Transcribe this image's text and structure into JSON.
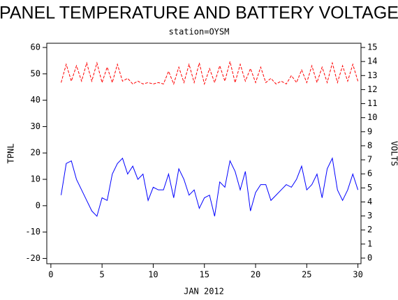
{
  "chart_data": {
    "type": "line",
    "title": "PANEL TEMPERATURE AND BATTERY VOLTAGE",
    "subtitle": "station=OYSM",
    "x_label": "JAN 2012",
    "y_label": "TPNL",
    "y2_label": "VOLTS",
    "x": [
      1,
      1.5,
      2,
      2.5,
      3,
      3.5,
      4,
      4.5,
      5,
      5.5,
      6,
      6.5,
      7,
      7.5,
      8,
      8.5,
      9,
      9.5,
      10,
      10.5,
      11,
      11.5,
      12,
      12.5,
      13,
      13.5,
      14,
      14.5,
      15,
      15.5,
      16,
      16.5,
      17,
      17.5,
      18,
      18.5,
      19,
      19.5,
      20,
      20.5,
      21,
      21.5,
      22,
      22.5,
      23,
      23.5,
      24,
      24.5,
      25,
      25.5,
      26,
      26.5,
      27,
      27.5,
      28,
      28.5,
      29,
      29.5,
      30
    ],
    "series": [
      {
        "name": "TPNL",
        "color": "#0000ff",
        "axis": "y",
        "values": [
          4,
          16,
          17,
          10,
          6,
          2,
          -2,
          -4,
          3,
          2,
          12,
          16,
          18,
          12,
          15,
          10,
          12,
          2,
          7,
          6,
          6,
          12,
          3,
          14,
          10,
          4,
          6,
          -1,
          3,
          4,
          -4,
          9,
          7,
          17,
          13,
          6,
          13,
          -2,
          5,
          8,
          8,
          2,
          4,
          6,
          8,
          7,
          10,
          15,
          6,
          8,
          12,
          3,
          14,
          18,
          6,
          2,
          6,
          12,
          6
        ]
      },
      {
        "name": "VOLTS",
        "color": "#ff0000",
        "axis": "y2",
        "values": [
          12.5,
          13.8,
          12.6,
          13.7,
          12.6,
          13.9,
          12.6,
          13.9,
          12.5,
          13.6,
          12.5,
          13.8,
          12.6,
          12.8,
          12.4,
          12.6,
          12.4,
          12.5,
          12.4,
          12.5,
          12.4,
          13.3,
          12.4,
          13.6,
          12.5,
          13.8,
          12.5,
          13.9,
          12.4,
          13.5,
          12.5,
          13.7,
          12.6,
          14,
          12.5,
          13.8,
          12.6,
          13.5,
          12.5,
          13.6,
          12.5,
          12.8,
          12.4,
          12.6,
          12.4,
          13.0,
          12.5,
          13.4,
          12.5,
          13.7,
          12.5,
          13.6,
          12.5,
          13.9,
          12.5,
          13.7,
          12.6,
          13.8,
          12.6
        ]
      }
    ],
    "xlim": [
      -0.4,
      30.3
    ],
    "xticks": [
      0,
      5,
      10,
      15,
      20,
      25,
      30
    ],
    "ylim": [
      -22,
      61.6
    ],
    "yticks": [
      -20,
      -10,
      0,
      10,
      20,
      30,
      40,
      50,
      60
    ],
    "y2lim": [
      -0.4,
      15.3
    ],
    "y2ticks": [
      0,
      1,
      2,
      3,
      4,
      5,
      6,
      7,
      8,
      9,
      10,
      11,
      12,
      13,
      14,
      15
    ]
  }
}
